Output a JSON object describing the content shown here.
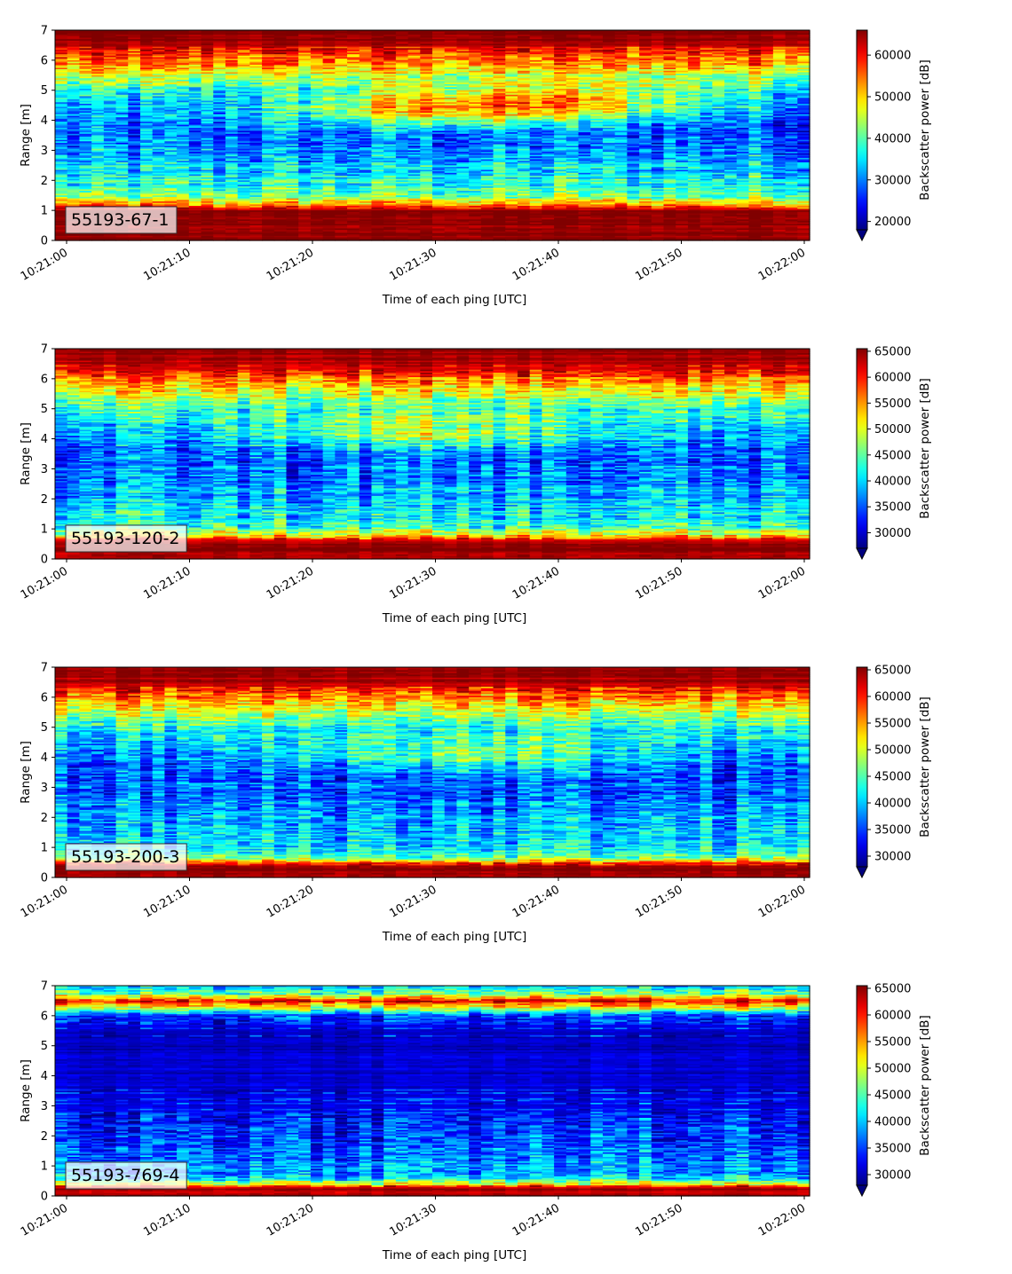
{
  "figure": {
    "xlabel": "Time of each ping [UTC]",
    "ylabel": "Range [m]",
    "colorbar_label": "Backscatter power [dB]",
    "colormap": "jet",
    "x_ticks": [
      "10:21:00",
      "10:21:10",
      "10:21:20",
      "10:21:30",
      "10:21:40",
      "10:21:50",
      "10:22:00"
    ],
    "y_ticks": [
      "0",
      "1",
      "2",
      "3",
      "4",
      "5",
      "6",
      "7"
    ]
  },
  "chart_data": [
    {
      "type": "heatmap",
      "label": "55193-67-1",
      "xlabel": "Time of each ping [UTC]",
      "ylabel": "Range [m]",
      "xlim": [
        "10:21:00",
        "10:22:00"
      ],
      "ylim": [
        0,
        7
      ],
      "colorbar": {
        "label": "Backscatter power [dB]",
        "ticks": [
          20000,
          30000,
          40000,
          50000,
          60000
        ],
        "range": [
          18000,
          66000
        ]
      },
      "profile": [
        {
          "range_m": 0.2,
          "level": 0.99
        },
        {
          "range_m": 0.6,
          "level": 1.0
        },
        {
          "range_m": 1.0,
          "level": 0.97
        },
        {
          "range_m": 1.2,
          "level": 0.72
        },
        {
          "range_m": 1.45,
          "level": 0.5
        },
        {
          "range_m": 1.8,
          "level": 0.42
        },
        {
          "range_m": 2.2,
          "level": 0.36
        },
        {
          "range_m": 2.7,
          "level": 0.3
        },
        {
          "range_m": 3.2,
          "level": 0.24
        },
        {
          "range_m": 3.6,
          "level": 0.22
        },
        {
          "range_m": 4.0,
          "level": 0.23
        },
        {
          "range_m": 4.6,
          "level": 0.3
        },
        {
          "range_m": 5.0,
          "level": 0.38
        },
        {
          "range_m": 5.3,
          "level": 0.5
        },
        {
          "range_m": 5.7,
          "level": 0.66
        },
        {
          "range_m": 6.2,
          "level": 0.82
        },
        {
          "range_m": 6.6,
          "level": 0.97
        },
        {
          "range_m": 7.0,
          "level": 1.0
        }
      ],
      "trend": [
        {
          "range_m": 3.8,
          "time_frac": 0.3,
          "delta": 0.0
        },
        {
          "range_m": 4.3,
          "time_frac": 0.5,
          "delta": 0.35
        },
        {
          "range_m": 4.6,
          "time_frac": 0.65,
          "delta": 0.4
        }
      ]
    },
    {
      "type": "heatmap",
      "label": "55193-120-2",
      "xlabel": "Time of each ping [UTC]",
      "ylabel": "Range [m]",
      "xlim": [
        "10:21:00",
        "10:22:00"
      ],
      "ylim": [
        0,
        7
      ],
      "colorbar": {
        "label": "Backscatter power [dB]",
        "ticks": [
          30000,
          35000,
          40000,
          45000,
          50000,
          55000,
          60000,
          65000
        ],
        "range": [
          27000,
          65500
        ]
      },
      "profile": [
        {
          "range_m": 0.1,
          "level": 0.95
        },
        {
          "range_m": 0.35,
          "level": 1.0
        },
        {
          "range_m": 0.6,
          "level": 0.92
        },
        {
          "range_m": 0.8,
          "level": 0.6
        },
        {
          "range_m": 1.1,
          "level": 0.42
        },
        {
          "range_m": 1.5,
          "level": 0.36
        },
        {
          "range_m": 2.0,
          "level": 0.3
        },
        {
          "range_m": 2.5,
          "level": 0.26
        },
        {
          "range_m": 3.0,
          "level": 0.22
        },
        {
          "range_m": 3.5,
          "level": 0.22
        },
        {
          "range_m": 4.0,
          "level": 0.26
        },
        {
          "range_m": 4.5,
          "level": 0.33
        },
        {
          "range_m": 5.0,
          "level": 0.42
        },
        {
          "range_m": 5.5,
          "level": 0.58
        },
        {
          "range_m": 6.0,
          "level": 0.76
        },
        {
          "range_m": 6.5,
          "level": 0.96
        },
        {
          "range_m": 7.0,
          "level": 0.98
        }
      ],
      "trend": [
        {
          "range_m": 4.2,
          "time_frac": 0.5,
          "delta": 0.3
        }
      ]
    },
    {
      "type": "heatmap",
      "label": "55193-200-3",
      "xlabel": "Time of each ping [UTC]",
      "ylabel": "Range [m]",
      "xlim": [
        "10:21:00",
        "10:22:00"
      ],
      "ylim": [
        0,
        7
      ],
      "colorbar": {
        "label": "Backscatter power [dB]",
        "ticks": [
          30000,
          35000,
          40000,
          45000,
          50000,
          55000,
          60000,
          65000
        ],
        "range": [
          28000,
          65500
        ]
      },
      "profile": [
        {
          "range_m": 0.15,
          "level": 0.98
        },
        {
          "range_m": 0.35,
          "level": 1.0
        },
        {
          "range_m": 0.5,
          "level": 0.75
        },
        {
          "range_m": 0.7,
          "level": 0.45
        },
        {
          "range_m": 1.0,
          "level": 0.36
        },
        {
          "range_m": 1.5,
          "level": 0.32
        },
        {
          "range_m": 2.0,
          "level": 0.3
        },
        {
          "range_m": 2.5,
          "level": 0.25
        },
        {
          "range_m": 3.0,
          "level": 0.2
        },
        {
          "range_m": 3.5,
          "level": 0.2
        },
        {
          "range_m": 4.0,
          "level": 0.24
        },
        {
          "range_m": 4.5,
          "level": 0.3
        },
        {
          "range_m": 5.0,
          "level": 0.4
        },
        {
          "range_m": 5.5,
          "level": 0.56
        },
        {
          "range_m": 6.0,
          "level": 0.74
        },
        {
          "range_m": 6.5,
          "level": 0.95
        },
        {
          "range_m": 7.0,
          "level": 0.97
        }
      ],
      "trend": [
        {
          "range_m": 4.1,
          "time_frac": 0.55,
          "delta": 0.3
        }
      ]
    },
    {
      "type": "heatmap",
      "label": "55193-769-4",
      "xlabel": "Time of each ping [UTC]",
      "ylabel": "Range [m]",
      "xlim": [
        "10:21:00",
        "10:22:00"
      ],
      "ylim": [
        0,
        7
      ],
      "colorbar": {
        "label": "Backscatter power [dB]",
        "ticks": [
          30000,
          35000,
          40000,
          45000,
          50000,
          55000,
          60000,
          65000
        ],
        "range": [
          28000,
          65500
        ]
      },
      "profile": [
        {
          "range_m": 0.15,
          "level": 0.95
        },
        {
          "range_m": 0.25,
          "level": 0.98
        },
        {
          "range_m": 0.4,
          "level": 0.6
        },
        {
          "range_m": 0.6,
          "level": 0.3
        },
        {
          "range_m": 1.0,
          "level": 0.28
        },
        {
          "range_m": 1.5,
          "level": 0.22
        },
        {
          "range_m": 2.0,
          "level": 0.18
        },
        {
          "range_m": 3.0,
          "level": 0.12
        },
        {
          "range_m": 4.0,
          "level": 0.08
        },
        {
          "range_m": 5.0,
          "level": 0.07
        },
        {
          "range_m": 5.7,
          "level": 0.1
        },
        {
          "range_m": 6.0,
          "level": 0.2
        },
        {
          "range_m": 6.3,
          "level": 0.65
        },
        {
          "range_m": 6.5,
          "level": 0.9
        },
        {
          "range_m": 6.7,
          "level": 0.5
        },
        {
          "range_m": 7.0,
          "level": 0.3
        }
      ],
      "trend": []
    }
  ]
}
